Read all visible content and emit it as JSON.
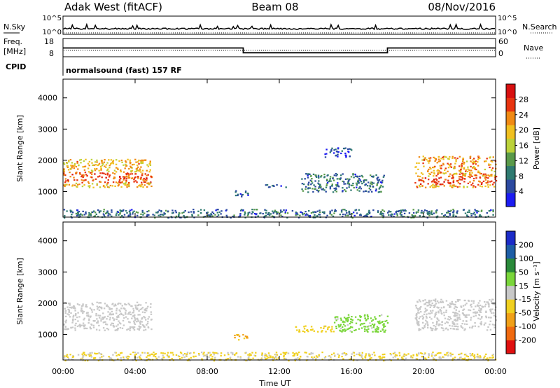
{
  "header": {
    "station": "Adak West (fitACF)",
    "beam": "Beam 08",
    "date": "08/Nov/2016"
  },
  "status_panels": {
    "nsky_label": "N.Sky",
    "nsearch_label": "N.Search",
    "freq_label_line1": "Freq.",
    "freq_label_line2": "[MHz]",
    "nave_label": "Nave",
    "cpid_label": "CPID",
    "cpid_value": "normalsound (fast) 157 RF",
    "noise_ticks": [
      "10^5",
      "10^0"
    ],
    "freq_ticks": [
      "18",
      "8"
    ],
    "nave_ticks": [
      "60",
      "0"
    ],
    "freq_steps": [
      {
        "start": 0,
        "end": 10,
        "mhz": 12.8
      },
      {
        "start": 10,
        "end": 18,
        "mhz": 10.2
      },
      {
        "start": 18,
        "end": 24,
        "mhz": 12.8
      }
    ],
    "nave_level": 0.35
  },
  "axes": {
    "xlabel": "Time UT",
    "ylabel": "Slant Range [km]",
    "x_ticks": [
      "00:00",
      "04:00",
      "08:00",
      "12:00",
      "16:00",
      "20:00",
      "00:00"
    ],
    "y_ticks": [
      "1000",
      "2000",
      "3000",
      "4000"
    ]
  },
  "colorbars": {
    "power": {
      "label": "Power [dB]",
      "ticks": [
        "4",
        "8",
        "12",
        "16",
        "20",
        "24",
        "28"
      ],
      "colors": [
        "#1c1cf2",
        "#2c4aa0",
        "#2f7a70",
        "#5a9a4a",
        "#bcd23a",
        "#f0c020",
        "#f08a14",
        "#e83410",
        "#d81010"
      ]
    },
    "velocity": {
      "label": "Velocity [m s⁻¹]",
      "ticks": [
        "200",
        "100",
        "50",
        "15",
        "-15",
        "-50",
        "-100",
        "-200"
      ],
      "colors": [
        "#1c2cc8",
        "#1e5ea6",
        "#2a8a3a",
        "#7ad63a",
        "#c8c8c8",
        "#f0d020",
        "#f0a018",
        "#f06a10",
        "#e01010"
      ]
    }
  },
  "chart_data": [
    {
      "type": "heatmap",
      "title": "Power",
      "xlabel": "Time UT",
      "ylabel": "Slant Range [km]",
      "xlim": [
        0,
        24
      ],
      "ylim": [
        180,
        4600
      ],
      "colorbar": {
        "label": "Power [dB]",
        "range": [
          0,
          32
        ]
      },
      "regions": [
        {
          "x": [
            0.0,
            4.9
          ],
          "y": [
            1150,
            2050
          ],
          "core": [
            1300,
            1650
          ],
          "value": 20
        },
        {
          "x": [
            9.4,
            10.3
          ],
          "y": [
            850,
            1050
          ],
          "value": 6
        },
        {
          "x": [
            11.2,
            12.4
          ],
          "y": [
            1150,
            1250
          ],
          "value": 6
        },
        {
          "x": [
            13.2,
            17.8
          ],
          "y": [
            1000,
            1600
          ],
          "value": 8
        },
        {
          "x": [
            14.5,
            16.0
          ],
          "y": [
            2100,
            2450
          ],
          "value": 5
        },
        {
          "x": [
            19.5,
            24.0
          ],
          "y": [
            1150,
            2150
          ],
          "core": [
            1250,
            1500
          ],
          "value": 22
        },
        {
          "x": [
            0.0,
            24.0
          ],
          "y": [
            180,
            450
          ],
          "value": 8
        }
      ]
    },
    {
      "type": "heatmap",
      "title": "Velocity",
      "xlabel": "Time UT",
      "ylabel": "Slant Range [km]",
      "xlim": [
        0,
        24
      ],
      "ylim": [
        180,
        4600
      ],
      "colorbar": {
        "label": "Velocity [m s⁻¹]",
        "range": [
          -200,
          200
        ]
      },
      "regions": [
        {
          "x": [
            0.0,
            4.9
          ],
          "y": [
            1150,
            2050
          ],
          "value": 0
        },
        {
          "x": [
            9.4,
            10.3
          ],
          "y": [
            850,
            1050
          ],
          "value": -80
        },
        {
          "x": [
            12.8,
            15.0
          ],
          "y": [
            1100,
            1300
          ],
          "value": -40
        },
        {
          "x": [
            15.0,
            18.0
          ],
          "y": [
            1100,
            1650
          ],
          "value": 40
        },
        {
          "x": [
            19.5,
            24.0
          ],
          "y": [
            1150,
            2150
          ],
          "value": 0
        },
        {
          "x": [
            0.0,
            24.0
          ],
          "y": [
            180,
            450
          ],
          "value": -30
        }
      ]
    }
  ]
}
